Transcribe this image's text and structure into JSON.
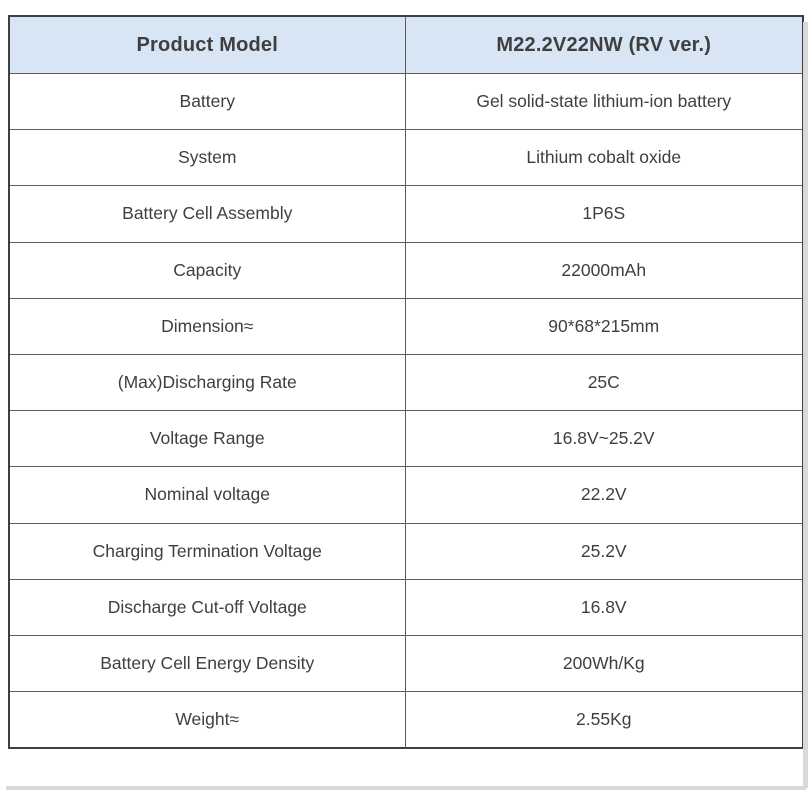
{
  "table": {
    "header": {
      "col1": "Product Model",
      "col2": "M22.2V22NW (RV ver.)"
    },
    "rows": [
      {
        "label": "Battery",
        "value": "Gel solid-state lithium-ion battery"
      },
      {
        "label": "System",
        "value": "Lithium cobalt oxide"
      },
      {
        "label": "Battery Cell Assembly",
        "value": "1P6S"
      },
      {
        "label": "Capacity",
        "value": "22000mAh"
      },
      {
        "label": "Dimension≈",
        "value": "90*68*215mm"
      },
      {
        "label": "(Max)Discharging Rate",
        "value": "25C"
      },
      {
        "label": "Voltage Range",
        "value": "16.8V~25.2V"
      },
      {
        "label": "Nominal voltage",
        "value": "22.2V"
      },
      {
        "label": "Charging Termination Voltage",
        "value": "25.2V"
      },
      {
        "label": "Discharge Cut-off Voltage",
        "value": "16.8V"
      },
      {
        "label": "Battery Cell Energy Density",
        "value": "200Wh/Kg"
      },
      {
        "label": "Weight≈",
        "value": "2.55Kg"
      }
    ],
    "colors": {
      "header_bg": "#d8e5f4",
      "border": "#5c5c5c",
      "outer_border": "#3f3f3f",
      "text": "#3f3f3f",
      "shadow": "#d9d9d9",
      "page_bg": "#ffffff"
    }
  },
  "chart_data": {
    "type": "table",
    "title": "Product Model / M22.2V22NW (RV ver.)",
    "columns": [
      "Product Model",
      "M22.2V22NW (RV ver.)"
    ],
    "rows": [
      [
        "Battery",
        "Gel solid-state lithium-ion battery"
      ],
      [
        "System",
        "Lithium cobalt oxide"
      ],
      [
        "Battery Cell Assembly",
        "1P6S"
      ],
      [
        "Capacity",
        "22000mAh"
      ],
      [
        "Dimension≈",
        "90*68*215mm"
      ],
      [
        "(Max)Discharging Rate",
        "25C"
      ],
      [
        "Voltage Range",
        "16.8V~25.2V"
      ],
      [
        "Nominal voltage",
        "22.2V"
      ],
      [
        "Charging Termination Voltage",
        "25.2V"
      ],
      [
        "Discharge Cut-off Voltage",
        "16.8V"
      ],
      [
        "Battery Cell Energy Density",
        "200Wh/Kg"
      ],
      [
        "Weight≈",
        "2.55Kg"
      ]
    ]
  }
}
